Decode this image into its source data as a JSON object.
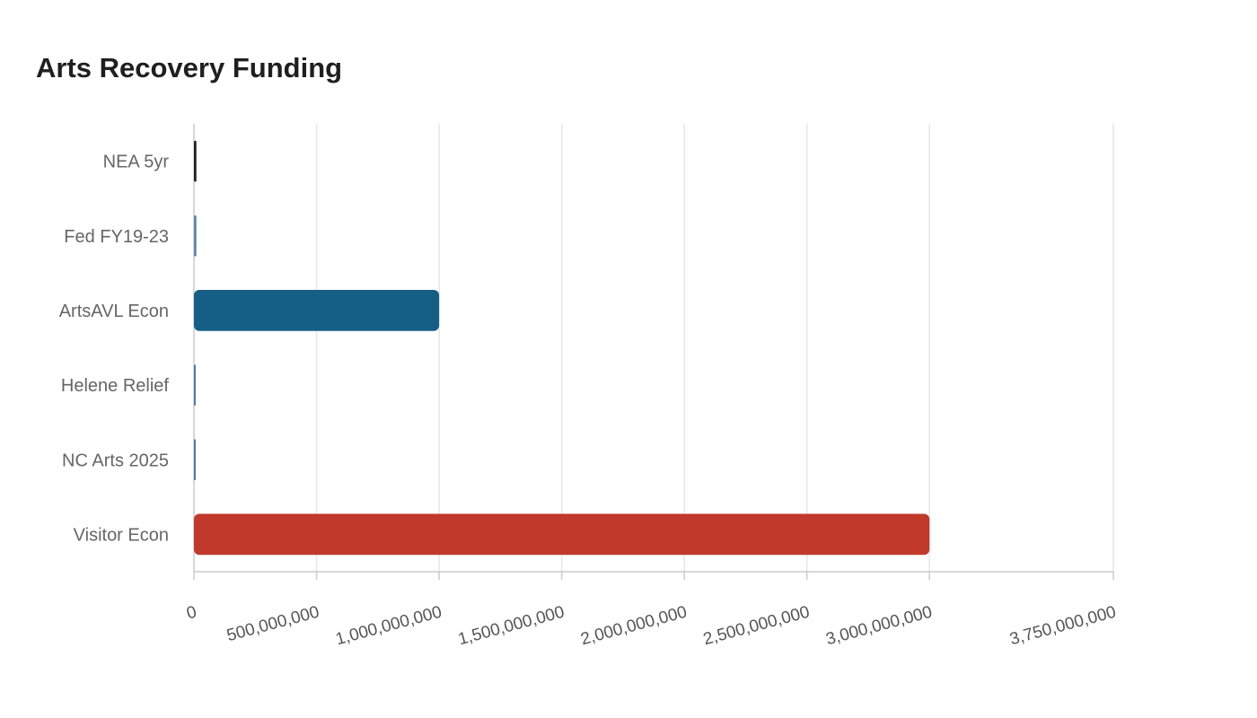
{
  "chart_data": {
    "type": "bar",
    "orientation": "horizontal",
    "title": "Arts Recovery Funding",
    "xlabel": "",
    "ylabel": "",
    "categories": [
      "NEA 5yr",
      "Fed FY19-23",
      "ArtsAVL Econ",
      "Helene Relief",
      "NC Arts 2025",
      "Visitor Econ"
    ],
    "values": [
      10000000,
      10000000,
      1000000000,
      1500000,
      600000,
      3000000000
    ],
    "colors": [
      "#222222",
      "#5b86a8",
      "#155f87",
      "#4a7fa6",
      "#4a7fa6",
      "#c0392b"
    ],
    "xlim": [
      0,
      3750000000
    ],
    "x_ticks": [
      0,
      500000000,
      1000000000,
      1500000000,
      2000000000,
      2500000000,
      3000000000,
      3750000000
    ],
    "x_tick_labels": [
      "0",
      "500,000,000",
      "1,000,000,000",
      "1,500,000,000",
      "2,000,000,000",
      "2,500,000,000",
      "3,000,000,000",
      "3,750,000,000"
    ],
    "grid": true,
    "gridline_color": "#e6e6e6",
    "axis_color": "#cccccc",
    "legend": "none"
  }
}
